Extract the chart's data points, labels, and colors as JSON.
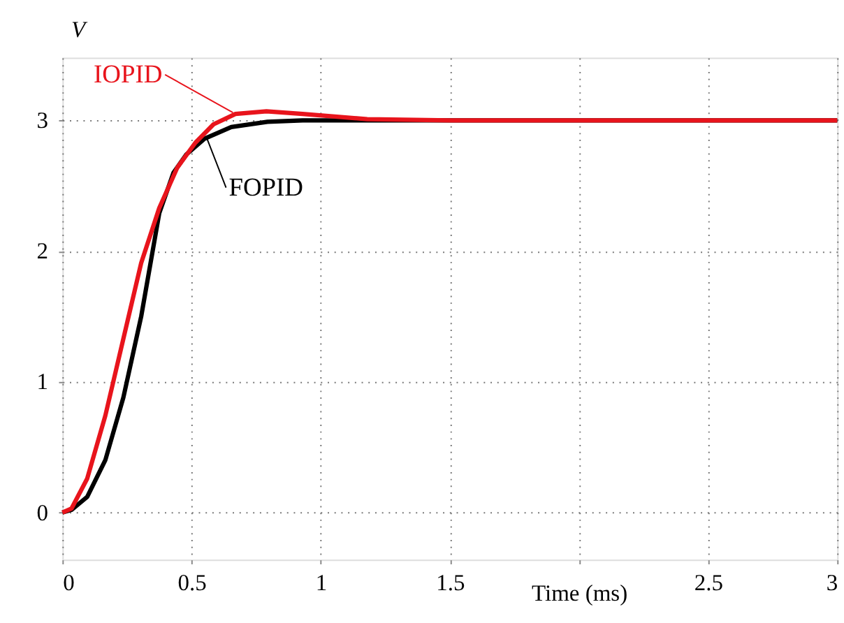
{
  "chart_data": {
    "type": "line",
    "xlabel": "Time (ms)",
    "ylabel": "V",
    "xlim": [
      0,
      3
    ],
    "ylim": [
      -0.36,
      3.48
    ],
    "xticks": [
      0,
      0.5,
      1,
      1.5,
      {
        "value": 2,
        "label": null
      },
      2.5,
      3
    ],
    "yticks": [
      0,
      1,
      2,
      3
    ],
    "grid": true,
    "marker": "none",
    "line_style": "solid",
    "series": [
      {
        "color": "#000000",
        "x": [
          0,
          0.035,
          0.096,
          0.166,
          0.236,
          0.305,
          0.375,
          0.43,
          0.48,
          0.55,
          0.654,
          0.794,
          0.93,
          1.2,
          3
        ],
        "values": [
          0,
          0.02,
          0.12,
          0.4,
          0.88,
          1.5,
          2.29,
          2.6,
          2.74,
          2.86,
          2.95,
          2.99,
          3.0,
          3.0,
          3.0
        ]
      },
      {
        "color": "#e8141c",
        "x": [
          0,
          0.035,
          0.096,
          0.166,
          0.236,
          0.305,
          0.375,
          0.445,
          0.515,
          0.585,
          0.67,
          0.79,
          0.93,
          1.18,
          1.5,
          3
        ],
        "values": [
          0,
          0.03,
          0.26,
          0.74,
          1.33,
          1.91,
          2.33,
          2.64,
          2.83,
          2.97,
          3.05,
          3.07,
          3.05,
          3.01,
          3.0,
          3.0
        ]
      }
    ],
    "annotations": [
      {
        "text": "IOPID",
        "x": 0.66,
        "y": 3.06
      },
      {
        "text": "FOPID",
        "x": 0.56,
        "y": 2.86
      }
    ]
  }
}
